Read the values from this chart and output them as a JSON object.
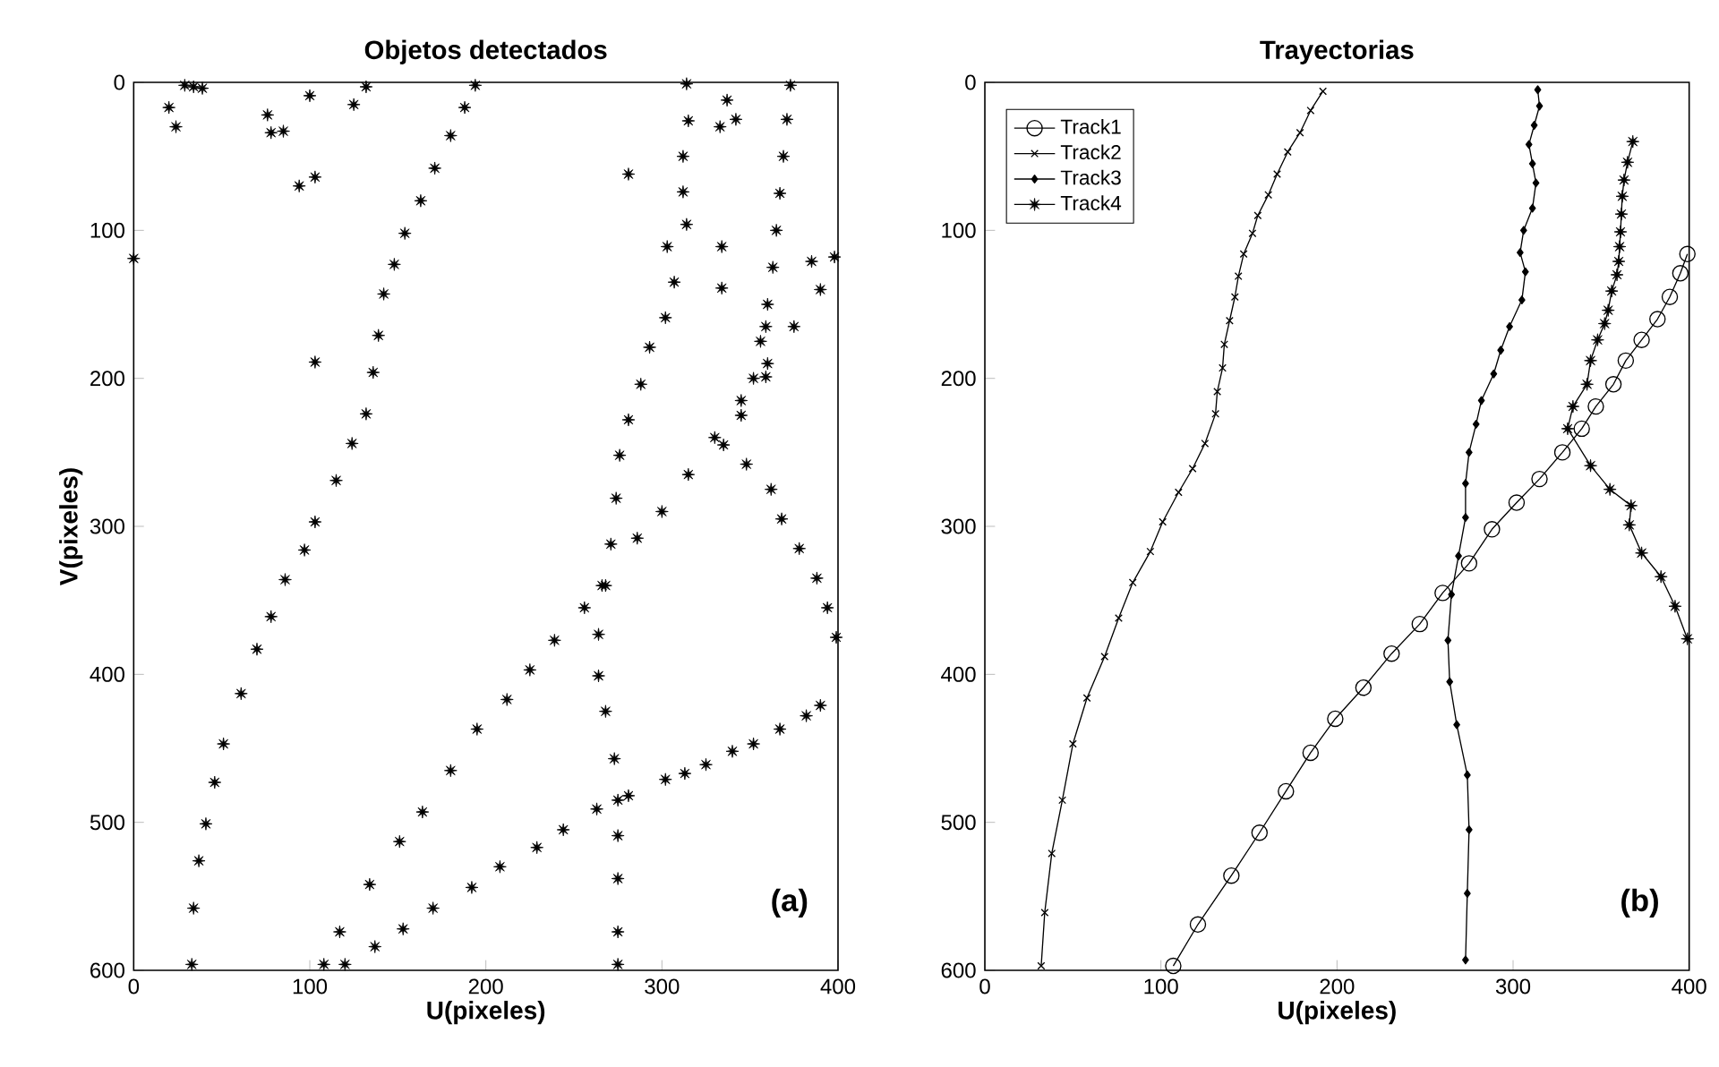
{
  "chart_data": [
    {
      "type": "scatter",
      "title": "Objetos detectados",
      "xlabel": "U(pixeles)",
      "ylabel": "V(pixeles)",
      "marker": "star",
      "xlim": [
        0,
        400
      ],
      "ylim": [
        600,
        0
      ],
      "xticks": [
        0,
        100,
        200,
        300,
        400
      ],
      "yticks": [
        0,
        100,
        200,
        300,
        400,
        500,
        600
      ],
      "annotations": [
        "(a)"
      ],
      "series": [
        {
          "color": "#000000",
          "x": [
            34,
            29,
            39,
            20,
            24,
            76,
            78,
            85,
            100,
            125,
            132,
            94,
            103,
            103,
            0,
            281,
            337,
            342,
            333,
            334,
            334,
            385,
            359,
            359,
            194,
            188,
            180,
            171,
            163,
            154,
            148,
            142,
            139,
            136,
            132,
            124,
            115,
            103,
            97,
            86,
            78,
            70,
            61,
            51,
            46,
            41,
            37,
            34,
            33,
            314,
            315,
            312,
            312,
            314,
            303,
            307,
            302,
            293,
            288,
            281,
            276,
            274,
            271,
            266,
            264,
            264,
            268,
            273,
            275,
            275,
            275,
            275,
            275,
            373,
            371,
            369,
            367,
            365,
            363,
            360,
            356,
            352,
            345,
            335,
            348,
            362,
            368,
            378,
            388,
            394,
            399,
            398,
            390,
            375,
            360,
            345,
            330,
            315,
            300,
            286,
            268,
            256,
            239,
            225,
            212,
            195,
            180,
            164,
            151,
            134,
            117,
            108,
            120,
            137,
            153,
            170,
            192,
            208,
            229,
            244,
            263,
            281,
            302,
            313,
            325,
            340,
            352,
            367,
            382,
            390
          ],
          "values": [
            3,
            2,
            4,
            17,
            30,
            22,
            34,
            33,
            9,
            15,
            3,
            70,
            64,
            189,
            119,
            62,
            12,
            25,
            30,
            111,
            139,
            121,
            165,
            199,
            2,
            17,
            36,
            58,
            80,
            102,
            123,
            143,
            171,
            196,
            224,
            244,
            269,
            297,
            316,
            336,
            361,
            383,
            413,
            447,
            473,
            501,
            526,
            558,
            596,
            1,
            26,
            50,
            74,
            96,
            111,
            135,
            159,
            179,
            204,
            228,
            252,
            281,
            312,
            340,
            373,
            401,
            425,
            457,
            485,
            509,
            538,
            574,
            596,
            2,
            25,
            50,
            75,
            100,
            125,
            150,
            175,
            200,
            225,
            245,
            258,
            275,
            295,
            315,
            335,
            355,
            375,
            118,
            140,
            165,
            190,
            215,
            240,
            265,
            290,
            308,
            340,
            355,
            377,
            397,
            417,
            437,
            465,
            493,
            513,
            542,
            574,
            596,
            596,
            584,
            572,
            558,
            544,
            530,
            517,
            505,
            491,
            482,
            471,
            467,
            461,
            452,
            447,
            437,
            428,
            421
          ]
        }
      ]
    },
    {
      "type": "line",
      "title": "Trayectorias",
      "xlabel": "U(pixeles)",
      "xlim": [
        0,
        400
      ],
      "ylim": [
        600,
        0
      ],
      "xticks": [
        0,
        100,
        200,
        300,
        400
      ],
      "yticks": [
        0,
        100,
        200,
        300,
        400,
        500,
        600
      ],
      "legend": "top left",
      "annotations": [
        "(b)"
      ],
      "series": [
        {
          "name": "Track1",
          "color": "#000000",
          "marker": "circle",
          "x": [
            399,
            395,
            389,
            382,
            373,
            364,
            357,
            347,
            339,
            328,
            315,
            302,
            288,
            275,
            260,
            247,
            231,
            215,
            199,
            185,
            171,
            156,
            140,
            121,
            107
          ],
          "values": [
            116,
            129,
            145,
            160,
            174,
            188,
            204,
            219,
            234,
            250,
            268,
            284,
            302,
            325,
            345,
            366,
            386,
            409,
            430,
            453,
            479,
            507,
            536,
            569,
            597
          ]
        },
        {
          "name": "Track2",
          "color": "#000000",
          "marker": "cross",
          "x": [
            192,
            185,
            179,
            172,
            166,
            161,
            155,
            152,
            147,
            144,
            142,
            139,
            136,
            135,
            132,
            131,
            125,
            118,
            110,
            101,
            94,
            84,
            76,
            68,
            58,
            50,
            44,
            38,
            34,
            32
          ],
          "values": [
            6,
            19,
            34,
            47,
            62,
            76,
            90,
            102,
            116,
            131,
            145,
            161,
            177,
            193,
            209,
            224,
            244,
            261,
            277,
            297,
            317,
            338,
            362,
            388,
            416,
            447,
            485,
            521,
            561,
            597
          ]
        },
        {
          "name": "Track3",
          "color": "#000000",
          "marker": "diamond",
          "x": [
            314,
            315,
            312,
            309,
            311,
            313,
            311,
            306,
            304,
            307,
            305,
            298,
            293,
            289,
            282,
            279,
            275,
            273,
            273,
            269,
            265,
            263,
            264,
            268,
            274,
            275,
            274,
            273
          ],
          "values": [
            5,
            16,
            29,
            42,
            55,
            68,
            85,
            100,
            115,
            128,
            147,
            165,
            181,
            197,
            215,
            231,
            250,
            271,
            294,
            320,
            346,
            377,
            405,
            434,
            468,
            505,
            548,
            593
          ]
        },
        {
          "name": "Track4",
          "color": "#000000",
          "marker": "star",
          "x": [
            368,
            365,
            363,
            362,
            361.5,
            361,
            360.5,
            360,
            359,
            356,
            354,
            352,
            348,
            344,
            342,
            334,
            331,
            344,
            355,
            367,
            366,
            373,
            384,
            392,
            399
          ],
          "values": [
            40,
            54,
            66,
            77,
            89,
            101,
            111,
            121,
            130,
            141,
            154,
            163,
            174,
            188,
            204,
            219,
            234,
            259,
            275,
            286,
            299,
            318,
            334,
            354,
            376
          ]
        }
      ]
    }
  ]
}
